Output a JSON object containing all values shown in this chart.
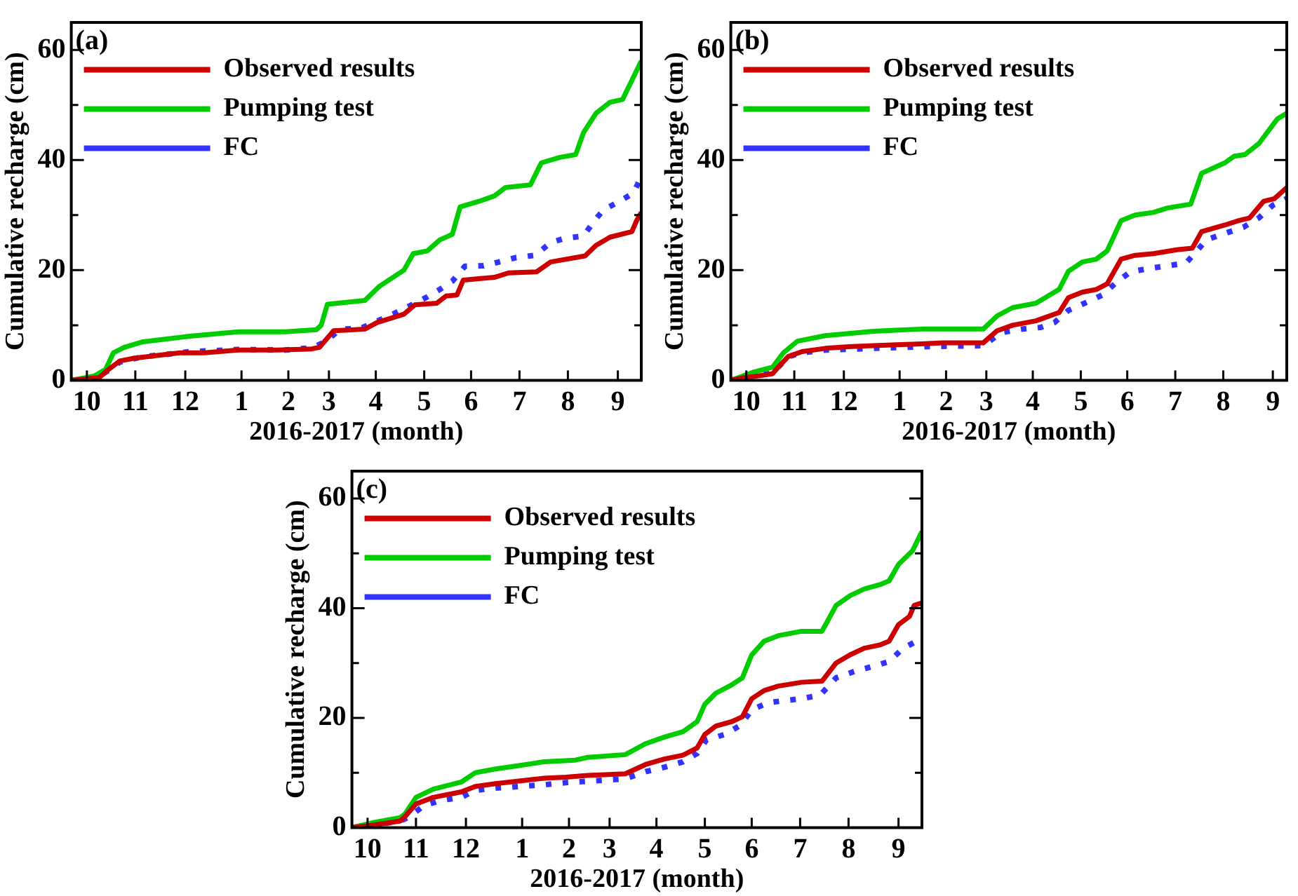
{
  "chart_data": [
    {
      "type": "line",
      "annotations": [
        "(a)"
      ],
      "xlabel": "2016-2017 (month)",
      "ylabel": "Cumulative recharge (cm)",
      "legend": "top left",
      "line_style": "solid",
      "marker": "none",
      "xlim": [
        "2016-10-01",
        "2017-10-01"
      ],
      "xticks": [
        {
          "value": "2016-10-11",
          "label": "10"
        },
        {
          "value": "2016-11-11",
          "label": "11"
        },
        {
          "value": "2016-12-13",
          "label": "12"
        },
        {
          "value": "2017-01-18",
          "label": "1"
        },
        {
          "value": "2017-02-17",
          "label": "2"
        },
        {
          "value": "2017-03-15",
          "label": "3"
        },
        {
          "value": "2017-04-14",
          "label": "4"
        },
        {
          "value": "2017-05-15",
          "label": "5"
        },
        {
          "value": "2017-06-14",
          "label": "6"
        },
        {
          "value": "2017-07-15",
          "label": "7"
        },
        {
          "value": "2017-08-15",
          "label": "8"
        },
        {
          "value": "2017-09-16",
          "label": "9"
        }
      ],
      "ylim": [
        0,
        65
      ],
      "yticks": [
        0,
        {
          "value": 10,
          "label": null
        },
        20,
        {
          "value": 30,
          "label": null
        },
        40,
        {
          "value": 50,
          "label": null
        },
        60
      ],
      "series": [
        {
          "name": "Observed results",
          "color": "#cc0000",
          "x": [
            "2016-10-01",
            "2016-10-19",
            "2016-10-25",
            "2016-11-01",
            "2016-11-10",
            "2016-11-25",
            "2016-12-10",
            "2016-12-25",
            "2017-01-16",
            "2017-02-10",
            "2017-03-04",
            "2017-03-09",
            "2017-03-18",
            "2017-04-07",
            "2017-04-15",
            "2017-05-02",
            "2017-05-09",
            "2017-05-23",
            "2017-05-29",
            "2017-06-05",
            "2017-06-09",
            "2017-06-29",
            "2017-07-08",
            "2017-07-26",
            "2017-08-04",
            "2017-08-26",
            "2017-09-02",
            "2017-09-11",
            "2017-09-25",
            "2017-09-28",
            "2017-10-01"
          ],
          "values": [
            0,
            0.5,
            2,
            3.5,
            4,
            4.5,
            5,
            5,
            5.5,
            5.5,
            5.7,
            6,
            9,
            9.3,
            10.5,
            12,
            13.7,
            14,
            15.3,
            15.5,
            18.2,
            18.7,
            19.5,
            19.7,
            21.5,
            22.6,
            24.5,
            26,
            27,
            29,
            30.5
          ]
        },
        {
          "name": "Pumping test",
          "color": "#00cc00",
          "x": [
            "2016-10-01",
            "2016-10-16",
            "2016-10-23",
            "2016-10-28",
            "2016-11-04",
            "2016-11-16",
            "2016-12-01",
            "2016-12-16",
            "2017-01-16",
            "2017-02-15",
            "2017-03-07",
            "2017-03-10",
            "2017-03-14",
            "2017-04-07",
            "2017-04-16",
            "2017-04-25",
            "2017-05-02",
            "2017-05-08",
            "2017-05-17",
            "2017-05-25",
            "2017-06-02",
            "2017-06-07",
            "2017-06-19",
            "2017-06-29",
            "2017-07-06",
            "2017-07-22",
            "2017-07-29",
            "2017-08-10",
            "2017-08-20",
            "2017-08-25",
            "2017-09-02",
            "2017-09-11",
            "2017-09-19",
            "2017-10-01"
          ],
          "values": [
            0,
            0.8,
            2,
            5,
            6,
            7,
            7.5,
            8,
            8.8,
            8.8,
            9.2,
            10,
            13.8,
            14.5,
            17,
            18.7,
            20,
            23,
            23.5,
            25.5,
            26.5,
            31.5,
            32.5,
            33.5,
            35,
            35.5,
            39.5,
            40.5,
            41,
            45,
            48.5,
            50.5,
            51,
            58
          ]
        },
        {
          "name": "FC",
          "color": "#3333ff",
          "line_style": "dotted",
          "x": [
            "2016-10-01",
            "2016-10-16",
            "2016-10-25",
            "2016-11-01",
            "2016-11-16",
            "2016-12-01",
            "2016-12-16",
            "2017-01-01",
            "2017-01-16",
            "2017-02-15",
            "2017-03-04",
            "2017-03-13",
            "2017-03-22",
            "2017-04-04",
            "2017-04-13",
            "2017-04-25",
            "2017-05-07",
            "2017-05-16",
            "2017-05-25",
            "2017-06-02",
            "2017-06-10",
            "2017-06-22",
            "2017-07-02",
            "2017-07-13",
            "2017-07-25",
            "2017-08-04",
            "2017-08-13",
            "2017-08-25",
            "2017-09-01",
            "2017-09-07",
            "2017-09-17",
            "2017-09-26",
            "2017-10-01"
          ],
          "values": [
            0,
            0.3,
            1.8,
            3.3,
            4.3,
            4.7,
            5.2,
            5.4,
            5.6,
            5.5,
            5.9,
            7,
            9.3,
            9.4,
            10.5,
            12,
            13.7,
            15,
            16.5,
            18,
            20.7,
            20.8,
            21.5,
            22.3,
            22.7,
            25,
            25.8,
            26.2,
            29,
            31,
            32.5,
            34,
            37
          ]
        }
      ]
    },
    {
      "type": "line",
      "annotations": [
        "(b)"
      ],
      "xlabel": "2016-2017 (month)",
      "ylabel": "Cumulative recharge (cm)",
      "legend": "top left",
      "line_style": "solid",
      "marker": "none",
      "xlim": [
        "2016-10-01",
        "2017-09-25"
      ],
      "xticks": [
        {
          "value": "2016-10-11",
          "label": "10"
        },
        {
          "value": "2016-11-11",
          "label": "11"
        },
        {
          "value": "2016-12-13",
          "label": "12"
        },
        {
          "value": "2017-01-18",
          "label": "1"
        },
        {
          "value": "2017-02-17",
          "label": "2"
        },
        {
          "value": "2017-03-15",
          "label": "3"
        },
        {
          "value": "2017-04-14",
          "label": "4"
        },
        {
          "value": "2017-05-15",
          "label": "5"
        },
        {
          "value": "2017-06-14",
          "label": "6"
        },
        {
          "value": "2017-07-15",
          "label": "7"
        },
        {
          "value": "2017-08-15",
          "label": "8"
        },
        {
          "value": "2017-09-16",
          "label": "9"
        }
      ],
      "ylim": [
        0,
        65
      ],
      "yticks": [
        0,
        {
          "value": 10,
          "label": null
        },
        20,
        {
          "value": 30,
          "label": null
        },
        40,
        {
          "value": 50,
          "label": null
        },
        60
      ],
      "series": [
        {
          "name": "Observed results",
          "color": "#cc0000",
          "x": [
            "2016-10-01",
            "2016-10-10",
            "2016-10-19",
            "2016-10-28",
            "2016-11-01",
            "2016-11-07",
            "2016-11-16",
            "2016-12-01",
            "2016-12-16",
            "2017-01-01",
            "2017-02-01",
            "2017-02-15",
            "2017-03-13",
            "2017-03-22",
            "2017-04-01",
            "2017-04-16",
            "2017-05-01",
            "2017-05-07",
            "2017-05-16",
            "2017-05-25",
            "2017-06-01",
            "2017-06-10",
            "2017-06-19",
            "2017-07-01",
            "2017-07-16",
            "2017-07-26",
            "2017-08-01",
            "2017-08-16",
            "2017-08-25",
            "2017-09-01",
            "2017-09-10",
            "2017-09-17",
            "2017-09-25"
          ],
          "values": [
            0,
            0.5,
            0.8,
            1.2,
            2.5,
            4.3,
            5.2,
            5.8,
            6.1,
            6.3,
            6.6,
            6.8,
            6.8,
            9,
            10,
            10.8,
            12.3,
            15,
            16,
            16.5,
            17.5,
            22,
            22.7,
            23,
            23.7,
            24,
            27,
            28.2,
            29,
            29.5,
            32.5,
            33,
            35
          ]
        },
        {
          "name": "Pumping test",
          "color": "#00cc00",
          "x": [
            "2016-10-01",
            "2016-10-16",
            "2016-10-28",
            "2016-11-04",
            "2016-11-13",
            "2016-12-01",
            "2016-12-16",
            "2017-01-01",
            "2017-02-01",
            "2017-03-13",
            "2017-03-22",
            "2017-04-01",
            "2017-04-16",
            "2017-05-01",
            "2017-05-07",
            "2017-05-16",
            "2017-05-25",
            "2017-06-01",
            "2017-06-10",
            "2017-06-19",
            "2017-07-01",
            "2017-07-10",
            "2017-07-25",
            "2017-08-01",
            "2017-08-16",
            "2017-08-22",
            "2017-08-29",
            "2017-09-07",
            "2017-09-19",
            "2017-09-25"
          ],
          "values": [
            0,
            1.5,
            2.4,
            5,
            7.1,
            8.1,
            8.5,
            8.9,
            9.3,
            9.3,
            11.7,
            13.2,
            14,
            16.5,
            19.8,
            21.5,
            22,
            23.5,
            29,
            30,
            30.5,
            31.3,
            32,
            37.6,
            39.5,
            40.7,
            41,
            43,
            47.5,
            48.5
          ]
        },
        {
          "name": "FC",
          "color": "#3333ff",
          "line_style": "dotted",
          "x": [
            "2016-10-01",
            "2016-10-16",
            "2016-10-28",
            "2016-11-07",
            "2016-11-16",
            "2016-12-01",
            "2017-01-01",
            "2017-02-01",
            "2017-03-13",
            "2017-03-25",
            "2017-04-07",
            "2017-04-19",
            "2017-04-28",
            "2017-05-07",
            "2017-05-19",
            "2017-05-29",
            "2017-06-07",
            "2017-06-16",
            "2017-06-28",
            "2017-07-22",
            "2017-07-28",
            "2017-08-04",
            "2017-08-13",
            "2017-08-28",
            "2017-09-07",
            "2017-09-16",
            "2017-09-25"
          ],
          "values": [
            0,
            0.8,
            1.3,
            4.3,
            5,
            5.5,
            5.8,
            6.1,
            6.3,
            8.7,
            9.3,
            9.6,
            10.5,
            12.7,
            14.2,
            15.5,
            17.8,
            19.7,
            20.3,
            21.3,
            23.2,
            25.5,
            26.4,
            27.8,
            29.5,
            31.8,
            33
          ]
        }
      ]
    },
    {
      "type": "line",
      "annotations": [
        "(c)"
      ],
      "xlabel": "2016-2017 (month)",
      "ylabel": "Cumulative recharge (cm)",
      "legend": "top left",
      "line_style": "solid",
      "marker": "none",
      "xlim": [
        "2016-10-01",
        "2017-10-01"
      ],
      "xticks": [
        {
          "value": "2016-10-11",
          "label": "10"
        },
        {
          "value": "2016-11-11",
          "label": "11"
        },
        {
          "value": "2016-12-13",
          "label": "12"
        },
        {
          "value": "2017-01-18",
          "label": "1"
        },
        {
          "value": "2017-02-17",
          "label": "2"
        },
        {
          "value": "2017-03-15",
          "label": "3"
        },
        {
          "value": "2017-04-14",
          "label": "4"
        },
        {
          "value": "2017-05-15",
          "label": "5"
        },
        {
          "value": "2017-06-14",
          "label": "6"
        },
        {
          "value": "2017-07-15",
          "label": "7"
        },
        {
          "value": "2017-08-15",
          "label": "8"
        },
        {
          "value": "2017-09-16",
          "label": "9"
        }
      ],
      "ylim": [
        0,
        65
      ],
      "yticks": [
        0,
        {
          "value": 10,
          "label": null
        },
        20,
        {
          "value": 30,
          "label": null
        },
        40,
        {
          "value": 50,
          "label": null
        },
        60
      ],
      "series": [
        {
          "name": "Observed results",
          "color": "#cc0000",
          "x": [
            "2016-10-01",
            "2016-10-16",
            "2016-11-01",
            "2016-11-04",
            "2016-11-11",
            "2016-11-22",
            "2016-12-10",
            "2016-12-19",
            "2017-01-01",
            "2017-01-16",
            "2017-02-01",
            "2017-02-15",
            "2017-03-01",
            "2017-03-25",
            "2017-04-07",
            "2017-04-19",
            "2017-05-01",
            "2017-05-10",
            "2017-05-15",
            "2017-05-22",
            "2017-06-01",
            "2017-06-08",
            "2017-06-14",
            "2017-06-22",
            "2017-07-01",
            "2017-07-16",
            "2017-07-29",
            "2017-08-07",
            "2017-08-16",
            "2017-08-25",
            "2017-09-04",
            "2017-09-10",
            "2017-09-16",
            "2017-09-23",
            "2017-09-26",
            "2017-10-01"
          ],
          "values": [
            0,
            0.5,
            1.2,
            2,
            4.3,
            5.5,
            6.5,
            7.5,
            8,
            8.5,
            9,
            9.2,
            9.5,
            9.8,
            11.5,
            12.5,
            13.2,
            14.5,
            17,
            18.5,
            19.3,
            20.2,
            23.5,
            25,
            25.8,
            26.5,
            26.7,
            30,
            31.5,
            32.7,
            33.3,
            34,
            37,
            38.5,
            40.5,
            41
          ]
        },
        {
          "name": "Pumping test",
          "color": "#00cc00",
          "x": [
            "2016-10-01",
            "2016-10-16",
            "2016-11-01",
            "2016-11-04",
            "2016-11-11",
            "2016-11-22",
            "2016-12-10",
            "2016-12-19",
            "2017-01-01",
            "2017-01-16",
            "2017-02-01",
            "2017-02-21",
            "2017-03-01",
            "2017-03-25",
            "2017-04-07",
            "2017-04-19",
            "2017-05-01",
            "2017-05-10",
            "2017-05-15",
            "2017-05-22",
            "2017-06-01",
            "2017-06-08",
            "2017-06-14",
            "2017-06-22",
            "2017-07-01",
            "2017-07-16",
            "2017-07-29",
            "2017-08-07",
            "2017-08-16",
            "2017-08-25",
            "2017-09-04",
            "2017-09-10",
            "2017-09-16",
            "2017-09-25",
            "2017-10-01"
          ],
          "values": [
            0,
            1,
            1.8,
            2.5,
            5.5,
            7,
            8.3,
            10,
            10.7,
            11.3,
            12,
            12.3,
            12.8,
            13.3,
            15.3,
            16.5,
            17.5,
            19.3,
            22.5,
            24.5,
            26,
            27.3,
            31.5,
            34,
            35,
            35.8,
            35.8,
            40.5,
            42.3,
            43.5,
            44.3,
            45,
            48,
            50.5,
            54
          ]
        },
        {
          "name": "FC",
          "color": "#3333ff",
          "line_style": "dotted",
          "x": [
            "2016-10-01",
            "2016-10-16",
            "2016-11-01",
            "2016-11-07",
            "2016-11-16",
            "2016-11-28",
            "2016-12-10",
            "2016-12-19",
            "2017-01-01",
            "2017-02-01",
            "2017-02-15",
            "2017-03-25",
            "2017-04-07",
            "2017-04-19",
            "2017-05-01",
            "2017-05-10",
            "2017-05-16",
            "2017-05-28",
            "2017-06-07",
            "2017-06-14",
            "2017-06-25",
            "2017-07-16",
            "2017-07-28",
            "2017-08-07",
            "2017-08-19",
            "2017-09-01",
            "2017-09-10",
            "2017-09-19",
            "2017-10-01"
          ],
          "values": [
            0,
            0.5,
            1.2,
            2,
            4,
            5,
            5.5,
            6.8,
            7.2,
            7.8,
            8.2,
            8.9,
            10.2,
            11,
            12,
            13.5,
            16,
            17,
            18.7,
            21.5,
            22.8,
            23.5,
            24.2,
            27.3,
            28.5,
            29.5,
            30.3,
            32.7,
            34.5
          ]
        }
      ]
    }
  ]
}
